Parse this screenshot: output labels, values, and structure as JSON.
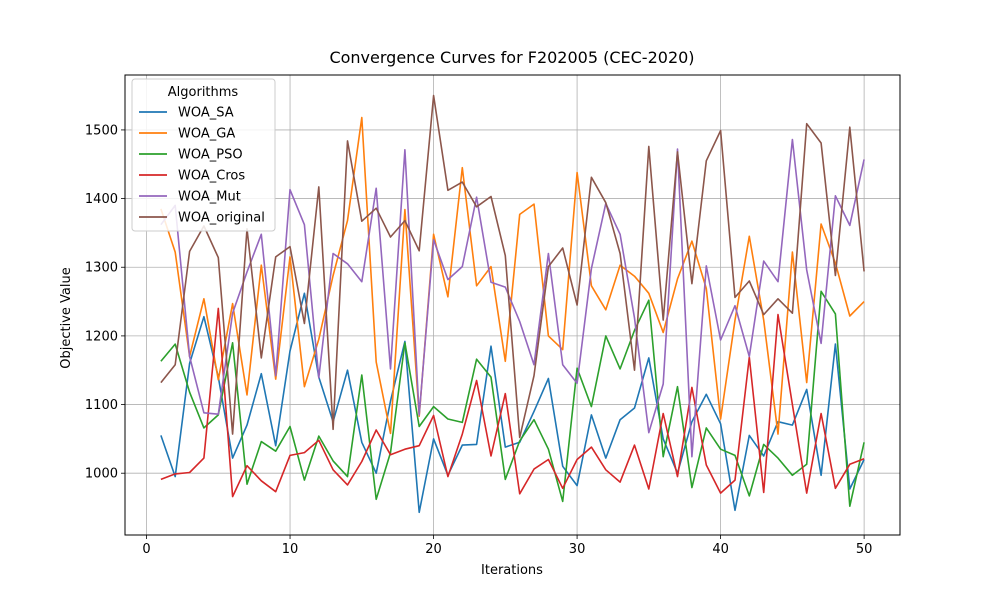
{
  "chart_data": {
    "type": "line",
    "title": "Convergence Curves for F202005 (CEC-2020)",
    "xlabel": "Iterations",
    "ylabel": "Objective Value",
    "xlim": [
      -1.5,
      52.5
    ],
    "ylim": [
      910,
      1580
    ],
    "xticks": [
      0,
      10,
      20,
      30,
      40,
      50
    ],
    "yticks": [
      1000,
      1100,
      1200,
      1300,
      1400,
      1500
    ],
    "grid": true,
    "legend_title": "Algorithms",
    "legend_position": "upper-left",
    "x": [
      1,
      2,
      3,
      4,
      5,
      6,
      7,
      8,
      9,
      10,
      11,
      12,
      13,
      14,
      15,
      16,
      17,
      18,
      19,
      20,
      21,
      22,
      23,
      24,
      25,
      26,
      27,
      28,
      29,
      30,
      31,
      32,
      33,
      34,
      35,
      36,
      37,
      38,
      39,
      40,
      41,
      42,
      43,
      44,
      45,
      46,
      47,
      48,
      49,
      50
    ],
    "series": [
      {
        "name": "WOA_SA",
        "color": "#1f77b4",
        "values": [
          1055,
          995,
          1160,
          1228,
          1140,
          1022,
          1070,
          1145,
          1040,
          1178,
          1262,
          1140,
          1075,
          1150,
          1045,
          1000,
          1105,
          1192,
          943,
          1050,
          997,
          1041,
          1042,
          1185,
          1038,
          1045,
          1090,
          1138,
          1010,
          982,
          1085,
          1022,
          1078,
          1095,
          1168,
          1050,
          1000,
          1075,
          1115,
          1072,
          946,
          1055,
          1025,
          1075,
          1070,
          1122,
          997,
          1188,
          977,
          1020
        ]
      },
      {
        "name": "WOA_GA",
        "color": "#ff7f0e",
        "values": [
          1385,
          1322,
          1170,
          1254,
          1136,
          1247,
          1114,
          1303,
          1137,
          1315,
          1126,
          1195,
          1288,
          1368,
          1518,
          1162,
          1058,
          1384,
          1083,
          1348,
          1257,
          1445,
          1273,
          1301,
          1163,
          1377,
          1392,
          1200,
          1180,
          1438,
          1273,
          1238,
          1303,
          1287,
          1262,
          1205,
          1283,
          1338,
          1269,
          1079,
          1223,
          1345,
          1223,
          1057,
          1322,
          1132,
          1363,
          1306,
          1229,
          1250
        ]
      },
      {
        "name": "WOA_PSO",
        "color": "#2ca02c",
        "values": [
          1163,
          1188,
          1118,
          1066,
          1085,
          1190,
          984,
          1046,
          1032,
          1068,
          990,
          1054,
          1018,
          995,
          1143,
          962,
          1030,
          1190,
          1068,
          1097,
          1079,
          1074,
          1166,
          1140,
          991,
          1047,
          1078,
          1035,
          959,
          1153,
          1097,
          1200,
          1152,
          1208,
          1252,
          1024,
          1126,
          979,
          1066,
          1035,
          1026,
          967,
          1042,
          1022,
          997,
          1013,
          1265,
          1232,
          952,
          1045
        ]
      },
      {
        "name": "WOA_Cros",
        "color": "#d62728",
        "values": [
          991,
          999,
          1001,
          1022,
          1240,
          966,
          1011,
          989,
          973,
          1026,
          1030,
          1048,
          1005,
          983,
          1017,
          1063,
          1027,
          1035,
          1040,
          1084,
          995,
          1057,
          1135,
          1025,
          1116,
          970,
          1006,
          1020,
          978,
          1020,
          1038,
          1005,
          987,
          1041,
          977,
          1087,
          995,
          1125,
          1012,
          971,
          990,
          1169,
          972,
          1231,
          1100,
          971,
          1087,
          978,
          1013,
          1021
        ]
      },
      {
        "name": "WOA_Mut",
        "color": "#9467bd",
        "values": [
          1362,
          1390,
          1170,
          1088,
          1086,
          1233,
          1293,
          1348,
          1142,
          1413,
          1362,
          1139,
          1320,
          1305,
          1279,
          1415,
          1152,
          1471,
          1085,
          1340,
          1282,
          1301,
          1402,
          1278,
          1271,
          1221,
          1158,
          1320,
          1158,
          1131,
          1298,
          1393,
          1348,
          1226,
          1059,
          1130,
          1472,
          1024,
          1302,
          1194,
          1244,
          1170,
          1309,
          1279,
          1486,
          1296,
          1189,
          1404,
          1361,
          1457
        ]
      },
      {
        "name": "WOA_original",
        "color": "#8c564b",
        "values": [
          1132,
          1158,
          1323,
          1360,
          1314,
          1057,
          1356,
          1168,
          1315,
          1330,
          1218,
          1417,
          1064,
          1484,
          1367,
          1386,
          1344,
          1368,
          1324,
          1550,
          1412,
          1424,
          1388,
          1403,
          1317,
          1052,
          1142,
          1301,
          1328,
          1245,
          1431,
          1394,
          1320,
          1150,
          1476,
          1223,
          1468,
          1276,
          1455,
          1499,
          1256,
          1280,
          1231,
          1254,
          1233,
          1509,
          1481,
          1288,
          1504,
          1294
        ]
      }
    ]
  }
}
